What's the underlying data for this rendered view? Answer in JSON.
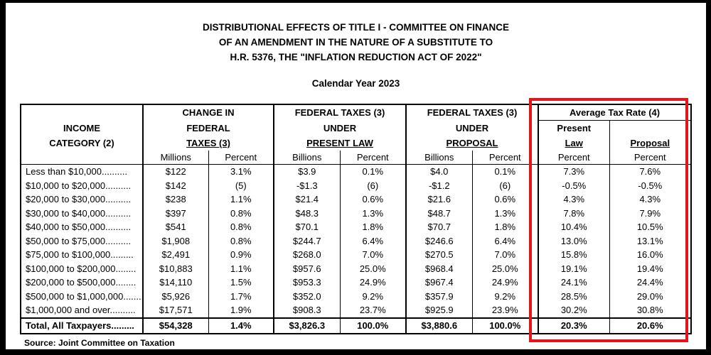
{
  "title_lines": [
    "DISTRIBUTIONAL EFFECTS OF TITLE I - COMMITTEE ON FINANCE",
    "OF AN AMENDMENT IN THE NATURE OF A SUBSTITUTE TO",
    "H.R. 5376, THE \"INFLATION REDUCTION ACT OF 2022\""
  ],
  "subtitle": "Calendar Year 2023",
  "headers": {
    "income_line1": "INCOME",
    "income_line2": "CATEGORY (2)",
    "change_line1": "CHANGE IN",
    "change_line2": "FEDERAL",
    "change_line3": "TAXES (3)",
    "present_line1": "FEDERAL TAXES (3)",
    "present_line2": "UNDER",
    "present_line3": "PRESENT LAW",
    "proposal_line1": "FEDERAL TAXES (3)",
    "proposal_line2": "UNDER",
    "proposal_line3": "PROPOSAL",
    "atr_title": "Average Tax Rate (4)",
    "atr_present_line1": "Present",
    "atr_present_line2": "Law",
    "atr_proposal": "Proposal"
  },
  "subheaders": [
    "Millions",
    "Percent",
    "Billions",
    "Percent",
    "Billions",
    "Percent",
    "Percent",
    "Percent"
  ],
  "rows": [
    [
      "Less than $10,000..........",
      "$122",
      "3.1%",
      "$3.9",
      "0.1%",
      "$4.0",
      "0.1%",
      "7.3%",
      "7.6%"
    ],
    [
      "$10,000 to $20,000..........",
      "$142",
      "(5)",
      "-$1.3",
      "(6)",
      "-$1.2",
      "(6)",
      "-0.5%",
      "-0.5%"
    ],
    [
      "$20,000 to $30,000..........",
      "$238",
      "1.1%",
      "$21.4",
      "0.6%",
      "$21.6",
      "0.6%",
      "4.3%",
      "4.3%"
    ],
    [
      "$30,000 to $40,000..........",
      "$397",
      "0.8%",
      "$48.3",
      "1.3%",
      "$48.7",
      "1.3%",
      "7.8%",
      "7.9%"
    ],
    [
      "$40,000 to $50,000..........",
      "$541",
      "0.8%",
      "$70.1",
      "1.8%",
      "$70.7",
      "1.8%",
      "10.4%",
      "10.5%"
    ],
    [
      "$50,000 to $75,000..........",
      "$1,908",
      "0.8%",
      "$244.7",
      "6.4%",
      "$246.6",
      "6.4%",
      "13.0%",
      "13.1%"
    ],
    [
      "$75,000 to $100,000.........",
      "$2,491",
      "0.9%",
      "$268.0",
      "7.0%",
      "$270.5",
      "7.0%",
      "15.8%",
      "16.0%"
    ],
    [
      "$100,000 to $200,000........",
      "$10,883",
      "1.1%",
      "$957.6",
      "25.0%",
      "$968.4",
      "25.0%",
      "19.1%",
      "19.4%"
    ],
    [
      "$200,000 to $500,000........",
      "$14,110",
      "1.5%",
      "$953.3",
      "24.9%",
      "$967.4",
      "24.9%",
      "24.1%",
      "24.4%"
    ],
    [
      "$500,000 to $1,000,000........",
      "$5,926",
      "1.7%",
      "$352.0",
      "9.2%",
      "$357.9",
      "9.2%",
      "28.5%",
      "29.0%"
    ],
    [
      "$1,000,000 and over..........",
      "$17,571",
      "1.9%",
      "$908.3",
      "23.7%",
      "$925.9",
      "23.9%",
      "30.2%",
      "30.8%"
    ]
  ],
  "total_row": [
    "Total, All Taxpayers.........",
    "$54,328",
    "1.4%",
    "$3,826.3",
    "100.0%",
    "$3,880.6",
    "100.0%",
    "20.3%",
    "20.6%"
  ],
  "source": "Source:  Joint Committee on Taxation",
  "highlight_color": "#e5141c"
}
